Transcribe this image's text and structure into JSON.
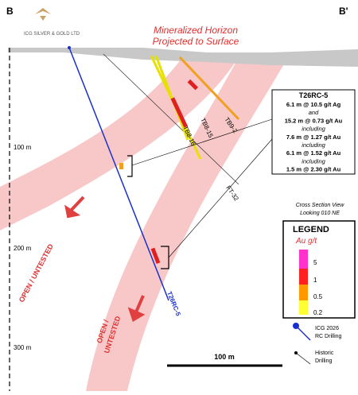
{
  "header": {
    "section_start": "B",
    "section_end": "B'",
    "logo_text": "ICG SILVER & GOLD LTD"
  },
  "title": {
    "lines": [
      "Mineralized Horizon",
      "Projected to Surface"
    ]
  },
  "drill_holes": [
    "TB8-15",
    "TB8-16",
    "TB9-2",
    "FT-32",
    "T26RC-5"
  ],
  "callout": {
    "hole": "T26RC-5",
    "lines": [
      "6.1 m @ 10.5 g/t Ag",
      "and",
      "15.2 m @ 0.73 g/t Au",
      "including",
      "7.6 m @ 1.27 g/t Au",
      "including",
      "6.1 m @ 1.52 g/t Au",
      "including",
      "1.5 m @ 2.30 g/t Au"
    ]
  },
  "open_labels": [
    [
      "OPEN / UNTESTED"
    ],
    [
      "OPEN /",
      "UNTESTED"
    ]
  ],
  "section_note": [
    "Cross Section View",
    "Looking 010 NE"
  ],
  "depth_labels": [
    "100 m",
    "200 m",
    "300 m"
  ],
  "scale_bar": "100 m",
  "legend": {
    "title": "LEGEND",
    "unit": "Au g/t",
    "grades": [
      "5",
      "1",
      "0.5",
      "0.2"
    ],
    "items": [
      [
        "ICG 2026",
        "RC Drilling"
      ],
      [
        "Historic",
        "Drilling"
      ]
    ]
  }
}
